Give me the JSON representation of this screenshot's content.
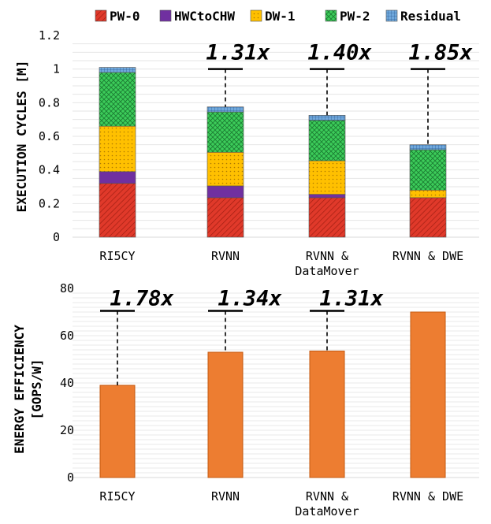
{
  "chart_data": [
    {
      "type": "bar",
      "stacked": true,
      "ylabel": "EXECUTION CYCLES [M]",
      "ylim": [
        0,
        1.2
      ],
      "yticks": [
        "0",
        "0.2",
        "0.4",
        "0.6",
        "0.8",
        "1",
        "1.2"
      ],
      "categories": [
        [
          "RI5CY"
        ],
        [
          "RVNN"
        ],
        [
          "RVNN &",
          "DataMover"
        ],
        [
          "RVNN & DWE"
        ]
      ],
      "series": [
        {
          "name": "PW-0",
          "color": "#e0392a",
          "pattern": "hatch",
          "values": [
            0.32,
            0.235,
            0.235,
            0.235
          ]
        },
        {
          "name": "HWCtoCHW",
          "color": "#7030a0",
          "pattern": "solid",
          "values": [
            0.07,
            0.07,
            0.02,
            0.0
          ]
        },
        {
          "name": "DW-1",
          "color": "#ffc000",
          "pattern": "dots",
          "values": [
            0.27,
            0.2,
            0.2,
            0.045
          ]
        },
        {
          "name": "PW-2",
          "color": "#33cc55",
          "pattern": "crosshatch",
          "values": [
            0.32,
            0.24,
            0.24,
            0.24
          ]
        },
        {
          "name": "Residual",
          "color": "#5b9bd5",
          "pattern": "grid",
          "values": [
            0.03,
            0.03,
            0.03,
            0.03
          ]
        }
      ],
      "reference_line": 1.0,
      "annotations": [
        "",
        "1.31x",
        "1.40x",
        "1.85x"
      ],
      "legend": "top"
    },
    {
      "type": "bar",
      "ylabel": [
        "ENERGY EFFICIENCY",
        "[GOPS/W]"
      ],
      "ylim": [
        0,
        80
      ],
      "yticks": [
        "0",
        "20",
        "40",
        "60",
        "80"
      ],
      "categories": [
        [
          "RI5CY"
        ],
        [
          "RVNN"
        ],
        [
          "RVNN &",
          "DataMover"
        ],
        [
          "RVNN & DWE"
        ]
      ],
      "values": [
        39,
        53,
        53.5,
        70
      ],
      "color": "#ed7d31",
      "reference_line": 70.5,
      "annotations": [
        "1.78x",
        "1.34x",
        "1.31x",
        ""
      ]
    }
  ]
}
